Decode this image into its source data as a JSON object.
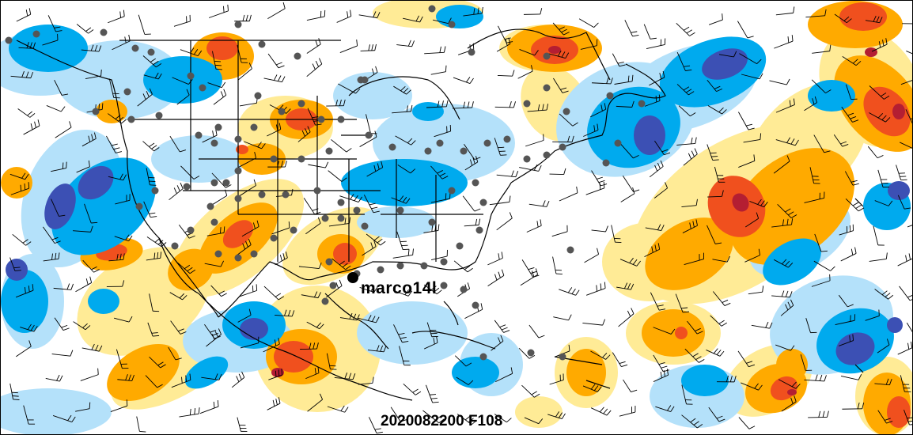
{
  "storm": {
    "label": "marco14l"
  },
  "valid_time": {
    "label": "2020082200 F108"
  },
  "colors": {
    "background": "#ffffff",
    "deep_blue": "#3c50b4",
    "blue": "#00aaee",
    "light_blue": "#b4e1fa",
    "pale_yellow": "#ffeb96",
    "orange": "#ffaa00",
    "red": "#f0501e",
    "dark_red": "#b41e32",
    "coastline": "#000000",
    "station_dot": "#555555"
  },
  "icons": {
    "storm_marker": "filled-circle-marker",
    "station": "gray-dot",
    "wind": "wind-barb"
  }
}
